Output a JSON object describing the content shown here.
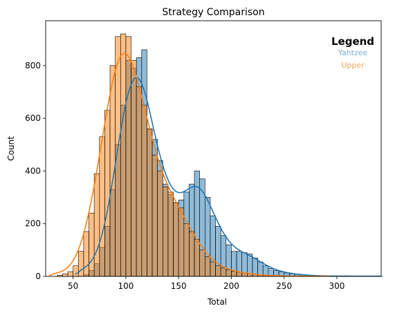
{
  "chart_data": {
    "type": "histogram",
    "title": "Strategy Comparison",
    "xlabel": "Total",
    "ylabel": "Count",
    "xlim": [
      24,
      342
    ],
    "ylim": [
      0,
      970
    ],
    "xticks": [
      50,
      100,
      150,
      200,
      250,
      300
    ],
    "yticks": [
      0,
      200,
      400,
      600,
      800
    ],
    "grid": false,
    "legend": {
      "title": "Legend",
      "placement": "top-right"
    },
    "kde": true,
    "series": [
      {
        "name": "Yahtzee",
        "color": "#1f77b4",
        "bin_start": 60,
        "bin_width": 5,
        "counts": [
          6,
          22,
          48,
          110,
          190,
          330,
          500,
          650,
          820,
          790,
          830,
          860,
          560,
          520,
          440,
          350,
          310,
          280,
          290,
          320,
          350,
          400,
          370,
          300,
          230,
          190,
          155,
          120,
          95,
          95,
          90,
          85,
          70,
          55,
          40,
          30,
          22,
          17,
          13,
          10,
          8,
          6,
          4,
          3,
          2,
          2,
          1,
          1,
          1,
          1,
          1,
          1,
          1,
          1,
          1
        ]
      },
      {
        "name": "Upper",
        "color": "#ff7f0e",
        "bin_start": 35,
        "bin_width": 5,
        "counts": [
          4,
          10,
          18,
          40,
          95,
          170,
          240,
          390,
          530,
          630,
          800,
          910,
          920,
          910,
          820,
          720,
          650,
          560,
          460,
          400,
          340,
          320,
          280,
          260,
          200,
          170,
          140,
          100,
          75,
          55,
          40,
          32,
          25,
          20,
          16,
          13,
          10,
          8,
          6,
          4,
          3,
          2,
          2,
          1,
          1,
          1,
          1,
          1,
          1,
          1
        ]
      }
    ]
  }
}
